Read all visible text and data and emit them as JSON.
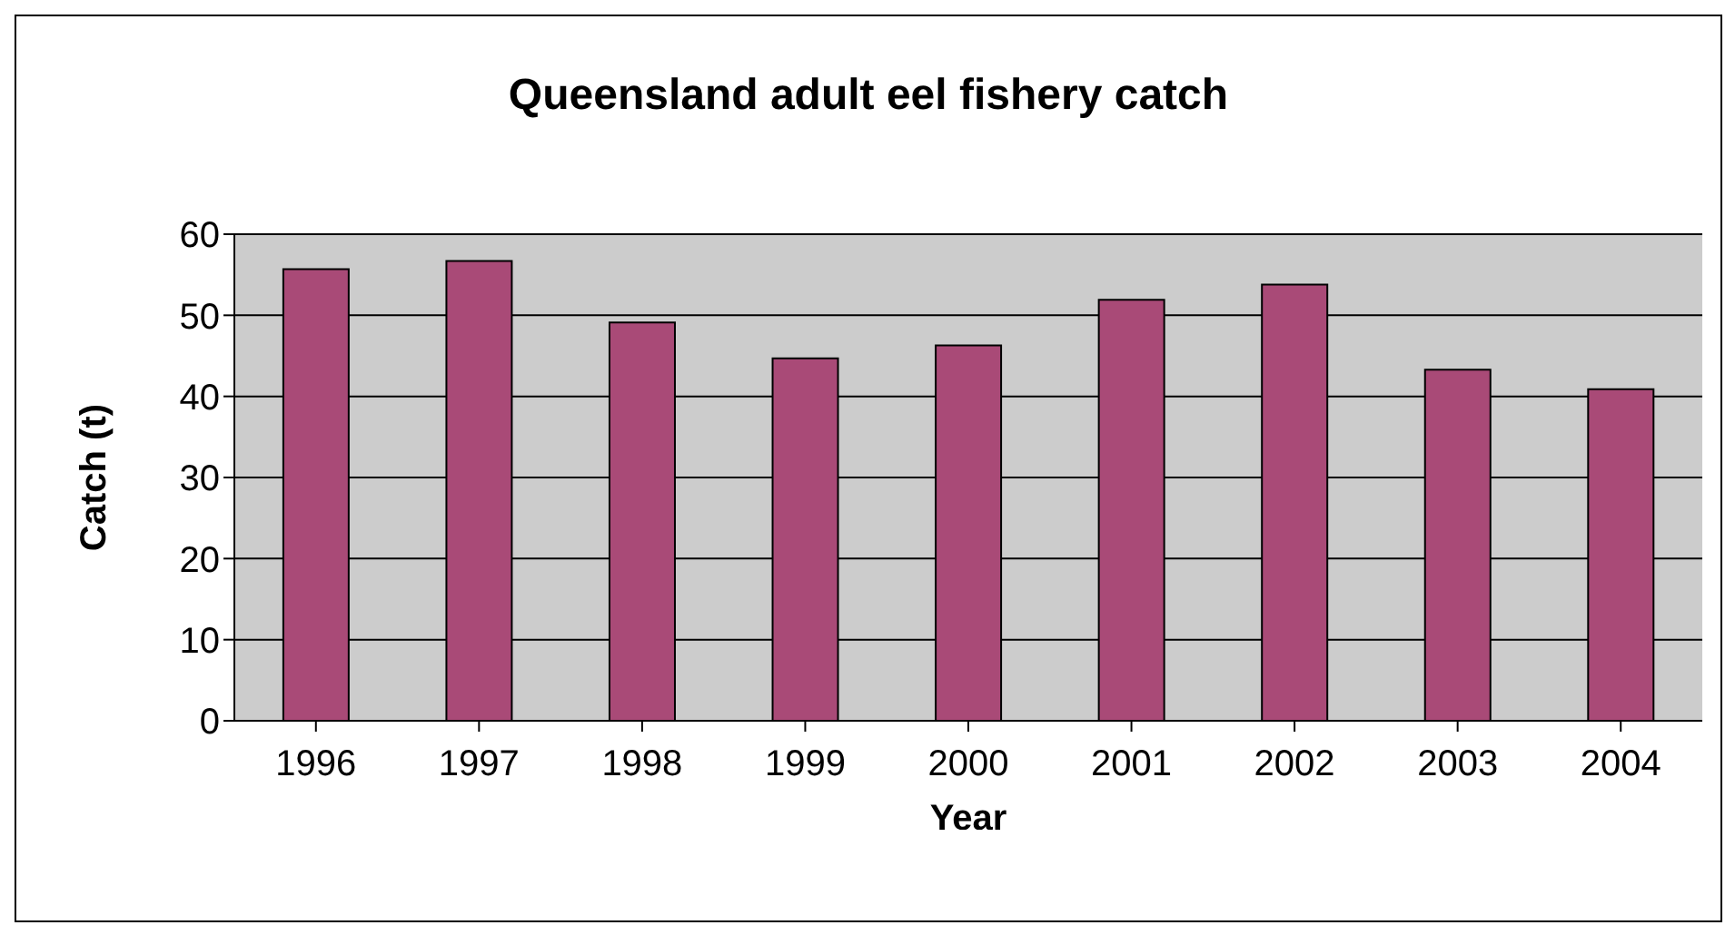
{
  "chart_data": {
    "type": "bar",
    "title": "Queensland adult eel fishery catch",
    "xlabel": "Year",
    "ylabel": "Catch (t)",
    "categories": [
      "1996",
      "1997",
      "1998",
      "1999",
      "2000",
      "2001",
      "2002",
      "2003",
      "2004"
    ],
    "values": [
      55.7,
      56.7,
      49.1,
      44.7,
      46.3,
      51.9,
      53.8,
      43.3,
      40.9
    ],
    "color": "#a94a77",
    "ylim": [
      0,
      60
    ],
    "yticks": [
      0,
      10,
      20,
      30,
      40,
      50,
      60
    ],
    "grid": "y"
  }
}
